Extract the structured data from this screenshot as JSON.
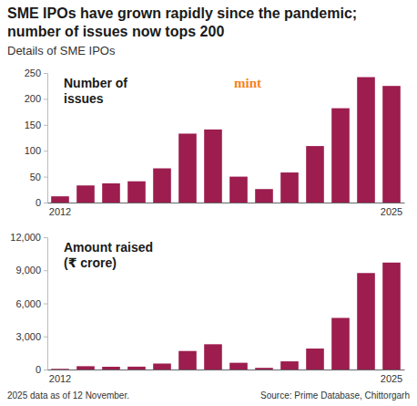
{
  "header": {
    "title": "SME IPOs have grown rapidly since the pandemic; number of issues now tops 200",
    "subtitle": "Details of SME IPOs",
    "brand": "mint"
  },
  "footer": {
    "note": "2025 data as of 12 November.",
    "source": "Source: Prime Database, Chittorgarh"
  },
  "chart_data": [
    {
      "type": "bar",
      "title": "Number of issues",
      "categories": [
        "2012",
        null,
        null,
        null,
        null,
        null,
        null,
        null,
        null,
        null,
        null,
        null,
        null,
        "2025"
      ],
      "values": [
        12,
        33,
        37,
        41,
        66,
        133,
        141,
        50,
        26,
        58,
        109,
        182,
        242,
        225
      ],
      "color": "#9c1d4e",
      "ylim": [
        0,
        250
      ],
      "yticks": [
        0,
        50,
        100,
        150,
        200,
        250
      ],
      "grid": false
    },
    {
      "type": "bar",
      "title": "Amount raised (₹ crore)",
      "categories": [
        "2012",
        null,
        null,
        null,
        null,
        null,
        null,
        null,
        null,
        null,
        null,
        null,
        null,
        "2025"
      ],
      "values": [
        60,
        300,
        250,
        260,
        540,
        1680,
        2290,
        610,
        150,
        740,
        1900,
        4680,
        8750,
        9700
      ],
      "color": "#9c1d4e",
      "ylim": [
        0,
        12000
      ],
      "yticks": [
        0,
        {
          "value": 3000,
          "label": "3,000"
        },
        {
          "value": 6000,
          "label": "6,000"
        },
        {
          "value": 9000,
          "label": "9,000"
        },
        {
          "value": 12000,
          "label": "12,000"
        }
      ],
      "grid": false
    }
  ]
}
